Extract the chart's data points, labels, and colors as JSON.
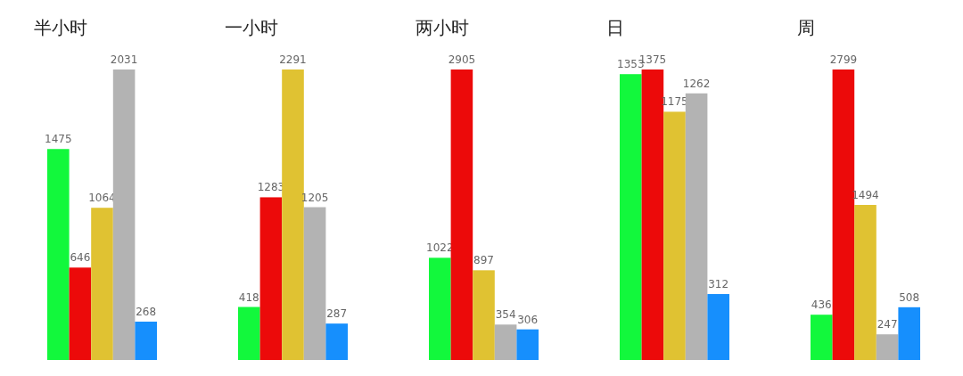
{
  "chart_data": [
    {
      "type": "bar",
      "title": "半小时",
      "categories": [
        null,
        null,
        null,
        null,
        null
      ],
      "values": [
        1475,
        646,
        1064,
        2031,
        268
      ],
      "colors": [
        "#12f83c",
        "#ec0a0a",
        "#e0c232",
        "#b3b3b3",
        "#168ffd"
      ],
      "data_labels": true
    },
    {
      "type": "bar",
      "title": "一小时",
      "categories": [
        null,
        null,
        null,
        null,
        null
      ],
      "values": [
        418,
        1283,
        2291,
        1205,
        287
      ],
      "colors": [
        "#12f83c",
        "#ec0a0a",
        "#e0c232",
        "#b3b3b3",
        "#168ffd"
      ],
      "data_labels": true
    },
    {
      "type": "bar",
      "title": "两小时",
      "categories": [
        null,
        null,
        null,
        null,
        null
      ],
      "values": [
        1022,
        2905,
        897,
        354,
        306
      ],
      "colors": [
        "#12f83c",
        "#ec0a0a",
        "#e0c232",
        "#b3b3b3",
        "#168ffd"
      ],
      "data_labels": true
    },
    {
      "type": "bar",
      "title": "日",
      "categories": [
        null,
        null,
        null,
        null,
        null
      ],
      "values": [
        1353,
        1375,
        1175,
        1262,
        312
      ],
      "colors": [
        "#12f83c",
        "#ec0a0a",
        "#e0c232",
        "#b3b3b3",
        "#168ffd"
      ],
      "data_labels": true
    },
    {
      "type": "bar",
      "title": "周",
      "categories": [
        null,
        null,
        null,
        null,
        null
      ],
      "values": [
        436,
        2799,
        1494,
        247,
        508
      ],
      "colors": [
        "#12f83c",
        "#ec0a0a",
        "#e0c232",
        "#b3b3b3",
        "#168ffd"
      ],
      "data_labels": true
    }
  ]
}
